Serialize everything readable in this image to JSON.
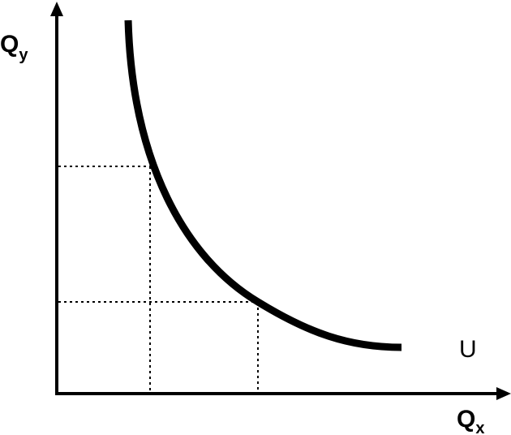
{
  "diagram": {
    "y_axis_label": {
      "text": "Q",
      "subscript": "y"
    },
    "x_axis_label": {
      "text": "Q",
      "subscript": "x"
    },
    "curve_label": "U"
  }
}
